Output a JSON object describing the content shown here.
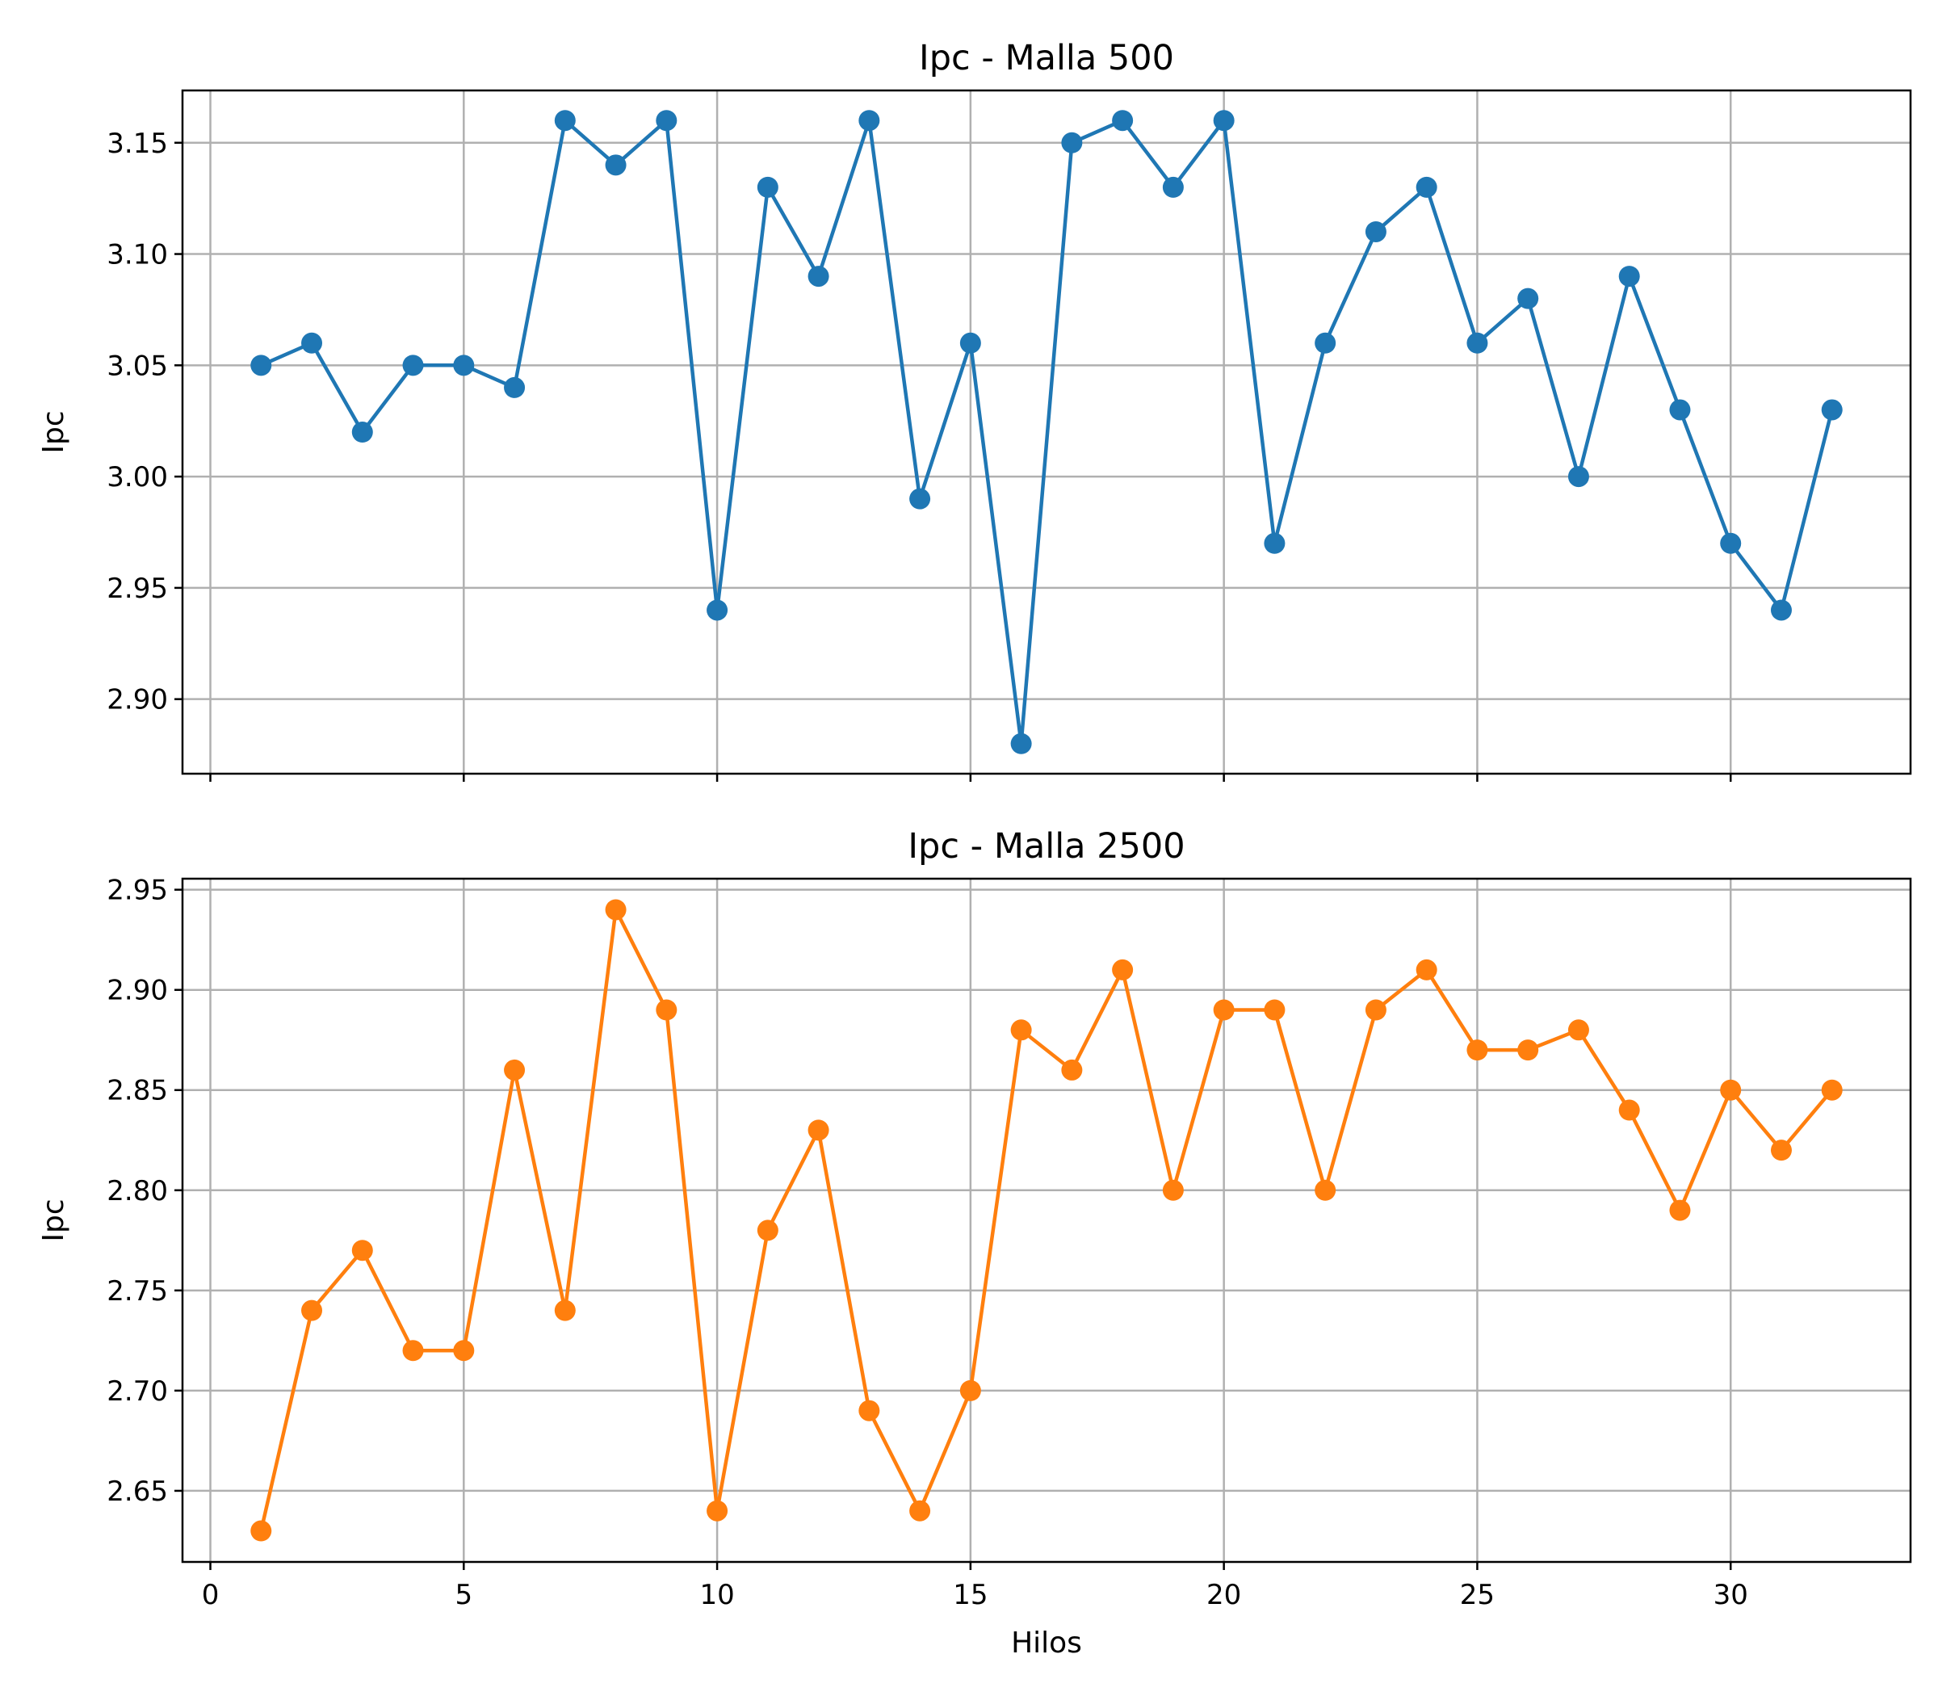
{
  "chart_data": [
    {
      "type": "line",
      "title": "Ipc - Malla 500",
      "xlabel": "",
      "ylabel": "Ipc",
      "xlim": [
        -0.55,
        33.55
      ],
      "ylim": [
        2.8665,
        3.1735
      ],
      "xticks": [
        0,
        5,
        10,
        15,
        20,
        25,
        30
      ],
      "xtick_labels_visible": false,
      "yticks": [
        2.9,
        2.95,
        3.0,
        3.05,
        3.1,
        3.15
      ],
      "ytick_labels": [
        "2.90",
        "2.95",
        "3.00",
        "3.05",
        "3.10",
        "3.15"
      ],
      "grid": true,
      "color": "#1f77b4",
      "marker": "circle",
      "series": [
        {
          "x": [
            1,
            2,
            3,
            4,
            5,
            6,
            7,
            8,
            9,
            10,
            11,
            12,
            13,
            14,
            15,
            16,
            17,
            18,
            19,
            20,
            21,
            22,
            23,
            24,
            25,
            26,
            27,
            28,
            29,
            30,
            31,
            32
          ],
          "values": [
            3.05,
            3.06,
            3.02,
            3.05,
            3.05,
            3.04,
            3.16,
            3.14,
            3.16,
            2.94,
            3.13,
            3.09,
            3.16,
            2.99,
            3.06,
            2.88,
            3.15,
            3.16,
            3.13,
            3.16,
            2.97,
            3.06,
            3.11,
            3.13,
            3.06,
            3.08,
            3.0,
            3.09,
            3.03,
            2.97,
            2.94,
            3.03
          ]
        }
      ]
    },
    {
      "type": "line",
      "title": "Ipc - Malla 2500",
      "xlabel": "Hilos",
      "ylabel": "Ipc",
      "xlim": [
        -0.55,
        33.55
      ],
      "ylim": [
        2.6145,
        2.9555
      ],
      "xticks": [
        0,
        5,
        10,
        15,
        20,
        25,
        30
      ],
      "xtick_labels": [
        "0",
        "5",
        "10",
        "15",
        "20",
        "25",
        "30"
      ],
      "yticks": [
        2.65,
        2.7,
        2.75,
        2.8,
        2.85,
        2.9,
        2.95
      ],
      "ytick_labels": [
        "2.65",
        "2.70",
        "2.75",
        "2.80",
        "2.85",
        "2.90",
        "2.95"
      ],
      "grid": true,
      "color": "#ff7f0e",
      "marker": "circle",
      "series": [
        {
          "x": [
            1,
            2,
            3,
            4,
            5,
            6,
            7,
            8,
            9,
            10,
            11,
            12,
            13,
            14,
            15,
            16,
            17,
            18,
            19,
            20,
            21,
            22,
            23,
            24,
            25,
            26,
            27,
            28,
            29,
            30,
            31,
            32
          ],
          "values": [
            2.63,
            2.74,
            2.77,
            2.72,
            2.72,
            2.86,
            2.74,
            2.94,
            2.89,
            2.64,
            2.78,
            2.83,
            2.69,
            2.64,
            2.7,
            2.88,
            2.86,
            2.91,
            2.8,
            2.89,
            2.89,
            2.8,
            2.89,
            2.91,
            2.87,
            2.87,
            2.88,
            2.84,
            2.79,
            2.85,
            2.82,
            2.85
          ]
        }
      ]
    }
  ]
}
